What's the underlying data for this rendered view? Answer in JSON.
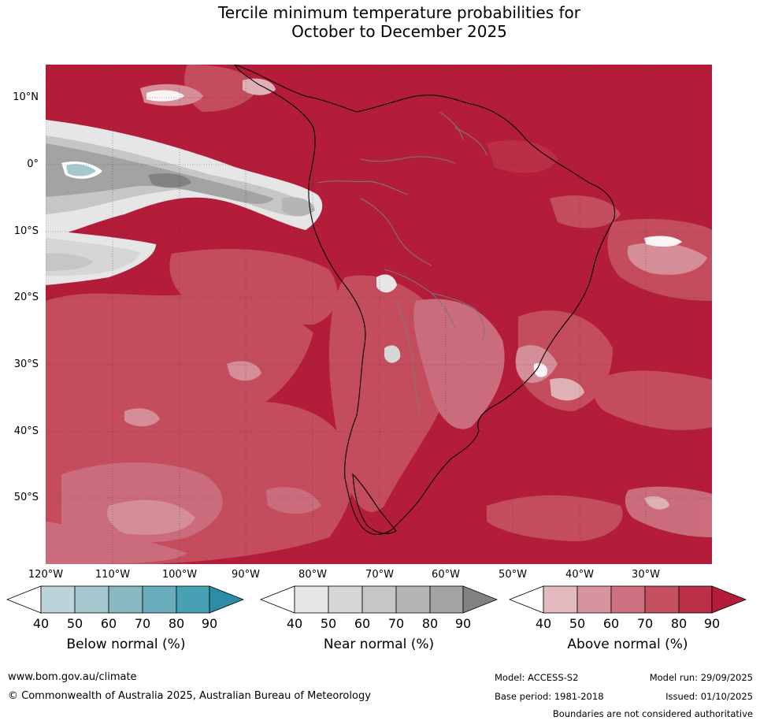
{
  "title_line1": "Tercile minimum temperature probabilities for",
  "title_line2": "October to December 2025",
  "lat_labels": [
    "10°N",
    "0°",
    "10°S",
    "20°S",
    "30°S",
    "40°S",
    "50°S"
  ],
  "lon_labels": [
    "120°W",
    "110°W",
    "100°W",
    "90°W",
    "80°W",
    "70°W",
    "60°W",
    "50°W",
    "40°W",
    "30°W"
  ],
  "colorbars": {
    "below": {
      "title": "Below normal (%)",
      "ticks": [
        "40",
        "50",
        "60",
        "70",
        "80",
        "90"
      ],
      "colors": [
        "#ffffff",
        "#bcd3da",
        "#a5c8ce",
        "#8ab8c1",
        "#6aadbc",
        "#48a1b3",
        "#2b8ea6"
      ]
    },
    "near": {
      "title": "Near normal (%)",
      "ticks": [
        "40",
        "50",
        "60",
        "70",
        "80",
        "90"
      ],
      "colors": [
        "#ffffff",
        "#e6e6e6",
        "#d6d6d6",
        "#c6c6c6",
        "#b5b5b5",
        "#a3a3a3",
        "#828282"
      ]
    },
    "above": {
      "title": "Above normal (%)",
      "ticks": [
        "40",
        "50",
        "60",
        "70",
        "80",
        "90"
      ],
      "colors": [
        "#ffffff",
        "#e2b9be",
        "#d7949e",
        "#cd7180",
        "#c5505f",
        "#bb3047",
        "#b31d3a"
      ]
    }
  },
  "footer": {
    "url": "www.bom.gov.au/climate",
    "copyright": "© Commonwealth of Australia 2025, Australian Bureau of Meteorology",
    "model": "Model: ACCESS-S2",
    "model_run": "Model run: 29/09/2025",
    "base_period": "Base period: 1981-2018",
    "issued": "Issued: 01/10/2025",
    "disclaimer": "Boundaries are not considered authoritative"
  }
}
